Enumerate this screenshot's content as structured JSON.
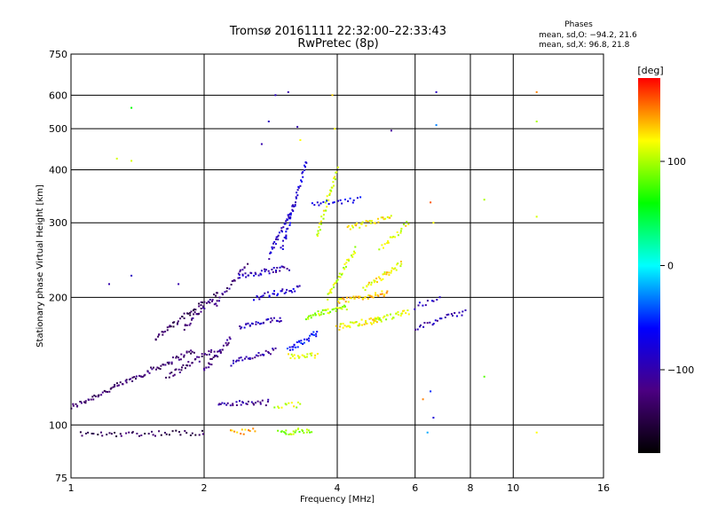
{
  "chart_data": {
    "type": "scatter",
    "title": "Tromsø 20161111 22:32:00–22:33:43",
    "subtitle": "RwPretec (8p)",
    "xlabel": "Frequency [MHz]",
    "ylabel": "Stationary phase Virtual Height [km]",
    "x_scale": "log",
    "y_scale": "log",
    "xlim": [
      1,
      16
    ],
    "ylim": [
      75,
      750
    ],
    "x_ticks": [
      1,
      2,
      4,
      6,
      8,
      10,
      16
    ],
    "x_tick_labels": [
      "1",
      "2",
      "4",
      "6",
      "8",
      "10",
      "16"
    ],
    "y_ticks": [
      75,
      100,
      200,
      300,
      400,
      500,
      600,
      750
    ],
    "y_tick_labels": [
      "75",
      "100",
      "200",
      "300",
      "400",
      "500",
      "600",
      "750"
    ],
    "grid": true,
    "info": {
      "heading": "Phases",
      "line1": "mean, sd,O: −94.2, 21.6",
      "line2": "mean, sd,X:  96.8, 21.8"
    },
    "colorbar": {
      "label": "[deg]",
      "range": [
        -180,
        180
      ],
      "ticks": [
        100,
        0,
        -100
      ],
      "tick_labels": [
        "100",
        "0",
        "−100"
      ],
      "colors": [
        "#000000",
        "#4b0082",
        "#0000ff",
        "#00ffff",
        "#00ff00",
        "#ffff00",
        "#ff0000"
      ]
    },
    "traces": [
      {
        "x0": 1.0,
        "x1": 1.9,
        "h0": 110,
        "h1": 150,
        "phase": -130,
        "n": 90
      },
      {
        "x0": 1.05,
        "x1": 2.0,
        "h0": 95,
        "h1": 96,
        "phase": -140,
        "n": 45
      },
      {
        "x0": 1.55,
        "x1": 2.0,
        "h0": 160,
        "h1": 195,
        "phase": -135,
        "n": 40
      },
      {
        "x0": 1.65,
        "x1": 2.1,
        "h0": 130,
        "h1": 150,
        "phase": -130,
        "n": 35
      },
      {
        "x0": 1.8,
        "x1": 2.15,
        "h0": 170,
        "h1": 205,
        "phase": -125,
        "n": 30
      },
      {
        "x0": 2.0,
        "x1": 2.3,
        "h0": 135,
        "h1": 160,
        "phase": -115,
        "n": 30
      },
      {
        "x0": 2.15,
        "x1": 2.8,
        "h0": 112,
        "h1": 113,
        "phase": -110,
        "n": 30
      },
      {
        "x0": 2.1,
        "x1": 2.5,
        "h0": 190,
        "h1": 240,
        "phase": -120,
        "n": 25
      },
      {
        "x0": 2.3,
        "x1": 2.9,
        "h0": 140,
        "h1": 150,
        "phase": -100,
        "n": 30
      },
      {
        "x0": 2.4,
        "x1": 3.0,
        "h0": 170,
        "h1": 178,
        "phase": -95,
        "n": 30
      },
      {
        "x0": 2.4,
        "x1": 3.1,
        "h0": 225,
        "h1": 235,
        "phase": -95,
        "n": 35
      },
      {
        "x0": 2.6,
        "x1": 3.3,
        "h0": 200,
        "h1": 210,
        "phase": -85,
        "n": 30
      },
      {
        "x0": 2.3,
        "x1": 2.6,
        "h0": 96,
        "h1": 97,
        "phase": 140,
        "n": 12
      },
      {
        "x0": 2.8,
        "x1": 3.2,
        "h0": 250,
        "h1": 330,
        "phase": -90,
        "n": 35
      },
      {
        "x0": 3.0,
        "x1": 3.4,
        "h0": 260,
        "h1": 420,
        "phase": -80,
        "n": 40
      },
      {
        "x0": 3.1,
        "x1": 3.6,
        "h0": 150,
        "h1": 165,
        "phase": -60,
        "n": 30
      },
      {
        "x0": 2.95,
        "x1": 3.5,
        "h0": 96,
        "h1": 97,
        "phase": 95,
        "n": 25
      },
      {
        "x0": 2.9,
        "x1": 3.3,
        "h0": 110,
        "h1": 112,
        "phase": 110,
        "n": 12
      },
      {
        "x0": 3.1,
        "x1": 3.6,
        "h0": 145,
        "h1": 146,
        "phase": 110,
        "n": 20
      },
      {
        "x0": 3.4,
        "x1": 4.2,
        "h0": 180,
        "h1": 190,
        "phase": 100,
        "n": 40
      },
      {
        "x0": 3.6,
        "x1": 4.0,
        "h0": 280,
        "h1": 400,
        "phase": 110,
        "n": 35
      },
      {
        "x0": 3.8,
        "x1": 4.4,
        "h0": 200,
        "h1": 260,
        "phase": 105,
        "n": 35
      },
      {
        "x0": 4.0,
        "x1": 5.0,
        "h0": 170,
        "h1": 178,
        "phase": 120,
        "n": 40
      },
      {
        "x0": 4.0,
        "x1": 5.2,
        "h0": 195,
        "h1": 205,
        "phase": 130,
        "n": 40
      },
      {
        "x0": 4.2,
        "x1": 5.3,
        "h0": 290,
        "h1": 310,
        "phase": 125,
        "n": 30
      },
      {
        "x0": 3.5,
        "x1": 4.5,
        "h0": 330,
        "h1": 340,
        "phase": -70,
        "n": 20
      },
      {
        "x0": 4.6,
        "x1": 5.6,
        "h0": 210,
        "h1": 240,
        "phase": 120,
        "n": 35
      },
      {
        "x0": 4.8,
        "x1": 5.8,
        "h0": 175,
        "h1": 185,
        "phase": 110,
        "n": 30
      },
      {
        "x0": 5.0,
        "x1": 5.8,
        "h0": 260,
        "h1": 300,
        "phase": 115,
        "n": 20
      },
      {
        "x0": 6.0,
        "x1": 7.8,
        "h0": 170,
        "h1": 185,
        "phase": -100,
        "n": 25
      },
      {
        "x0": 6.0,
        "x1": 6.8,
        "h0": 190,
        "h1": 200,
        "phase": -90,
        "n": 10
      }
    ],
    "scatter_points": [
      {
        "x": 1.37,
        "y": 420,
        "phase": 110
      },
      {
        "x": 1.37,
        "y": 560,
        "phase": 60
      },
      {
        "x": 1.37,
        "y": 225,
        "phase": -90
      },
      {
        "x": 1.27,
        "y": 425,
        "phase": 110
      },
      {
        "x": 1.22,
        "y": 215,
        "phase": -100
      },
      {
        "x": 1.75,
        "y": 215,
        "phase": -100
      },
      {
        "x": 2.9,
        "y": 600,
        "phase": -90
      },
      {
        "x": 3.1,
        "y": 610,
        "phase": -100
      },
      {
        "x": 3.9,
        "y": 600,
        "phase": 130
      },
      {
        "x": 3.95,
        "y": 500,
        "phase": 120
      },
      {
        "x": 5.3,
        "y": 495,
        "phase": -110
      },
      {
        "x": 6.7,
        "y": 610,
        "phase": -90
      },
      {
        "x": 6.7,
        "y": 510,
        "phase": -30
      },
      {
        "x": 6.5,
        "y": 335,
        "phase": 160
      },
      {
        "x": 6.6,
        "y": 300,
        "phase": 120
      },
      {
        "x": 6.5,
        "y": 120,
        "phase": -50
      },
      {
        "x": 6.6,
        "y": 104,
        "phase": -80
      },
      {
        "x": 6.4,
        "y": 96,
        "phase": -20
      },
      {
        "x": 6.25,
        "y": 115,
        "phase": 150
      },
      {
        "x": 8.6,
        "y": 130,
        "phase": 80
      },
      {
        "x": 8.6,
        "y": 340,
        "phase": 100
      },
      {
        "x": 11.3,
        "y": 610,
        "phase": 150
      },
      {
        "x": 11.3,
        "y": 520,
        "phase": 100
      },
      {
        "x": 11.3,
        "y": 310,
        "phase": 110
      },
      {
        "x": 11.3,
        "y": 96,
        "phase": 120
      },
      {
        "x": 2.7,
        "y": 460,
        "phase": -100
      },
      {
        "x": 2.8,
        "y": 520,
        "phase": -90
      },
      {
        "x": 3.25,
        "y": 505,
        "phase": -100
      },
      {
        "x": 3.3,
        "y": 470,
        "phase": 120
      }
    ]
  }
}
